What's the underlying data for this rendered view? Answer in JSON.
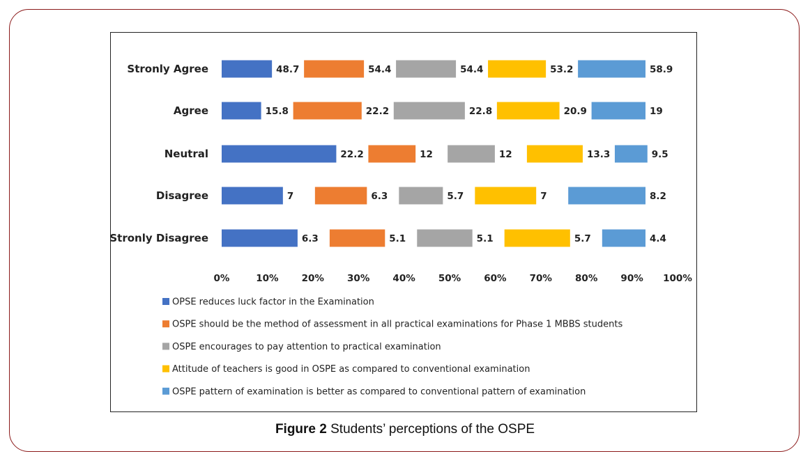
{
  "caption": {
    "label": "Figure 2",
    "text": "Students’ perceptions of the OSPE"
  },
  "chart_data": {
    "type": "bar",
    "orientation": "horizontal",
    "stacked": "100%",
    "categories": [
      "Stronly Agree",
      "Agree",
      "Neutral",
      "Disagree",
      "Stronly Disagree"
    ],
    "series": [
      {
        "name": "OPSE reduces luck factor in the Examination",
        "color": "#4472c4",
        "values": [
          48.7,
          15.8,
          22.2,
          7,
          6.3
        ]
      },
      {
        "name": "OSPE should be the method of assessment in all practical examinations for Phase 1 MBBS students",
        "color": "#ed7d31",
        "values": [
          54.4,
          22.2,
          12,
          6.3,
          5.1
        ]
      },
      {
        "name": "OSPE encourages to pay attention to practical examination",
        "color": "#a5a5a5",
        "values": [
          54.4,
          22.8,
          12,
          5.7,
          5.1
        ]
      },
      {
        "name": "Attitude of teachers is good in OSPE as compared to conventional examination",
        "color": "#ffc000",
        "values": [
          53.2,
          20.9,
          13.3,
          7,
          5.7
        ]
      },
      {
        "name": "OSPE pattern of examination is better as compared to conventional pattern of examination",
        "color": "#5b9bd5",
        "values": [
          58.9,
          19,
          9.5,
          8.2,
          4.4
        ]
      }
    ],
    "x_ticks": [
      "0%",
      "10%",
      "20%",
      "30%",
      "40%",
      "50%",
      "60%",
      "70%",
      "80%",
      "90%",
      "100%"
    ],
    "xlim": [
      0,
      100
    ],
    "legend_position": "bottom",
    "grid": false
  }
}
